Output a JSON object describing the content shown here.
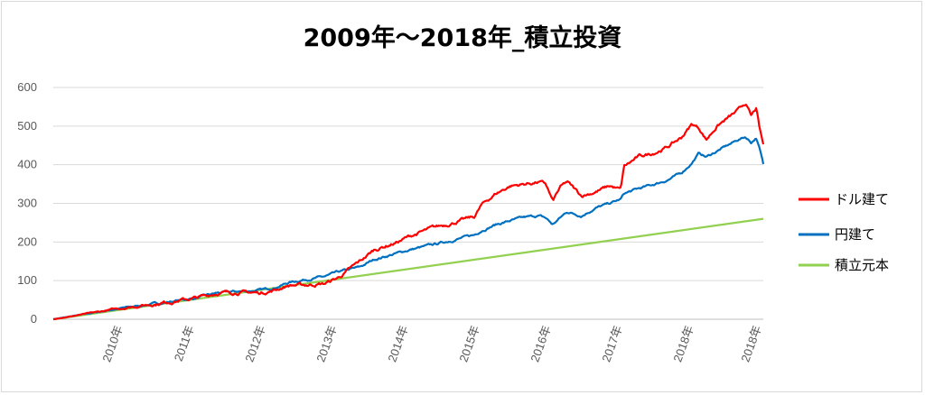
{
  "chart_data": {
    "type": "line",
    "title": "2009年～2018年_積立投資",
    "ylim": [
      0,
      600
    ],
    "yticks": [
      0,
      100,
      200,
      300,
      400,
      500,
      600
    ],
    "xlim": [
      2009.0,
      2018.95
    ],
    "xticks": [
      {
        "label": "2010年",
        "x": 2010.0
      },
      {
        "label": "2011年",
        "x": 2011.0
      },
      {
        "label": "2012年",
        "x": 2012.0
      },
      {
        "label": "2013年",
        "x": 2013.0
      },
      {
        "label": "2014年",
        "x": 2014.0
      },
      {
        "label": "2015年",
        "x": 2015.0
      },
      {
        "label": "2016年",
        "x": 2016.0
      },
      {
        "label": "2017年",
        "x": 2017.0
      },
      {
        "label": "2018年",
        "x": 2018.0
      },
      {
        "label": "2018年",
        "x": 2018.95
      }
    ],
    "grid": true,
    "legend_position": "right",
    "series": [
      {
        "name": "ドル建て",
        "color": "#ff0000",
        "noise": 6,
        "points": [
          [
            2009.0,
            0
          ],
          [
            2009.5,
            15
          ],
          [
            2010.0,
            30
          ],
          [
            2010.5,
            42
          ],
          [
            2011.0,
            55
          ],
          [
            2011.3,
            68
          ],
          [
            2011.6,
            70
          ],
          [
            2011.9,
            68
          ],
          [
            2012.1,
            75
          ],
          [
            2012.3,
            88
          ],
          [
            2012.5,
            88
          ],
          [
            2012.8,
            92
          ],
          [
            2013.0,
            108
          ],
          [
            2013.3,
            150
          ],
          [
            2013.5,
            180
          ],
          [
            2013.8,
            198
          ],
          [
            2014.0,
            215
          ],
          [
            2014.3,
            235
          ],
          [
            2014.6,
            250
          ],
          [
            2014.9,
            265
          ],
          [
            2015.0,
            295
          ],
          [
            2015.2,
            325
          ],
          [
            2015.4,
            345
          ],
          [
            2015.6,
            350
          ],
          [
            2015.8,
            355
          ],
          [
            2015.9,
            350
          ],
          [
            2016.0,
            305
          ],
          [
            2016.1,
            340
          ],
          [
            2016.2,
            355
          ],
          [
            2016.4,
            320
          ],
          [
            2016.6,
            330
          ],
          [
            2016.8,
            345
          ],
          [
            2016.95,
            335
          ],
          [
            2017.0,
            395
          ],
          [
            2017.2,
            420
          ],
          [
            2017.4,
            430
          ],
          [
            2017.6,
            445
          ],
          [
            2017.8,
            470
          ],
          [
            2017.95,
            505
          ],
          [
            2018.05,
            495
          ],
          [
            2018.15,
            465
          ],
          [
            2018.3,
            500
          ],
          [
            2018.45,
            520
          ],
          [
            2018.6,
            540
          ],
          [
            2018.7,
            560
          ],
          [
            2018.78,
            525
          ],
          [
            2018.85,
            545
          ],
          [
            2018.9,
            490
          ],
          [
            2018.95,
            450
          ]
        ]
      },
      {
        "name": "円建て",
        "color": "#0070c0",
        "noise": 4,
        "points": [
          [
            2009.0,
            0
          ],
          [
            2009.5,
            15
          ],
          [
            2010.0,
            30
          ],
          [
            2010.5,
            42
          ],
          [
            2011.0,
            55
          ],
          [
            2011.3,
            68
          ],
          [
            2011.6,
            72
          ],
          [
            2011.9,
            75
          ],
          [
            2012.1,
            82
          ],
          [
            2012.3,
            95
          ],
          [
            2012.5,
            102
          ],
          [
            2012.8,
            110
          ],
          [
            2013.0,
            122
          ],
          [
            2013.3,
            135
          ],
          [
            2013.5,
            155
          ],
          [
            2013.8,
            170
          ],
          [
            2014.0,
            180
          ],
          [
            2014.3,
            192
          ],
          [
            2014.6,
            205
          ],
          [
            2014.9,
            218
          ],
          [
            2015.0,
            230
          ],
          [
            2015.2,
            245
          ],
          [
            2015.4,
            255
          ],
          [
            2015.6,
            263
          ],
          [
            2015.8,
            268
          ],
          [
            2015.9,
            262
          ],
          [
            2016.0,
            245
          ],
          [
            2016.1,
            262
          ],
          [
            2016.2,
            278
          ],
          [
            2016.4,
            268
          ],
          [
            2016.6,
            288
          ],
          [
            2016.8,
            300
          ],
          [
            2016.95,
            310
          ],
          [
            2017.0,
            325
          ],
          [
            2017.2,
            338
          ],
          [
            2017.4,
            348
          ],
          [
            2017.6,
            360
          ],
          [
            2017.8,
            378
          ],
          [
            2017.95,
            405
          ],
          [
            2018.05,
            430
          ],
          [
            2018.15,
            420
          ],
          [
            2018.3,
            435
          ],
          [
            2018.45,
            450
          ],
          [
            2018.6,
            465
          ],
          [
            2018.7,
            472
          ],
          [
            2018.78,
            458
          ],
          [
            2018.85,
            470
          ],
          [
            2018.9,
            440
          ],
          [
            2018.95,
            400
          ]
        ]
      },
      {
        "name": "積立元本",
        "color": "#92d050",
        "noise": 0,
        "points": [
          [
            2009.0,
            0
          ],
          [
            2018.95,
            260
          ]
        ]
      }
    ]
  }
}
